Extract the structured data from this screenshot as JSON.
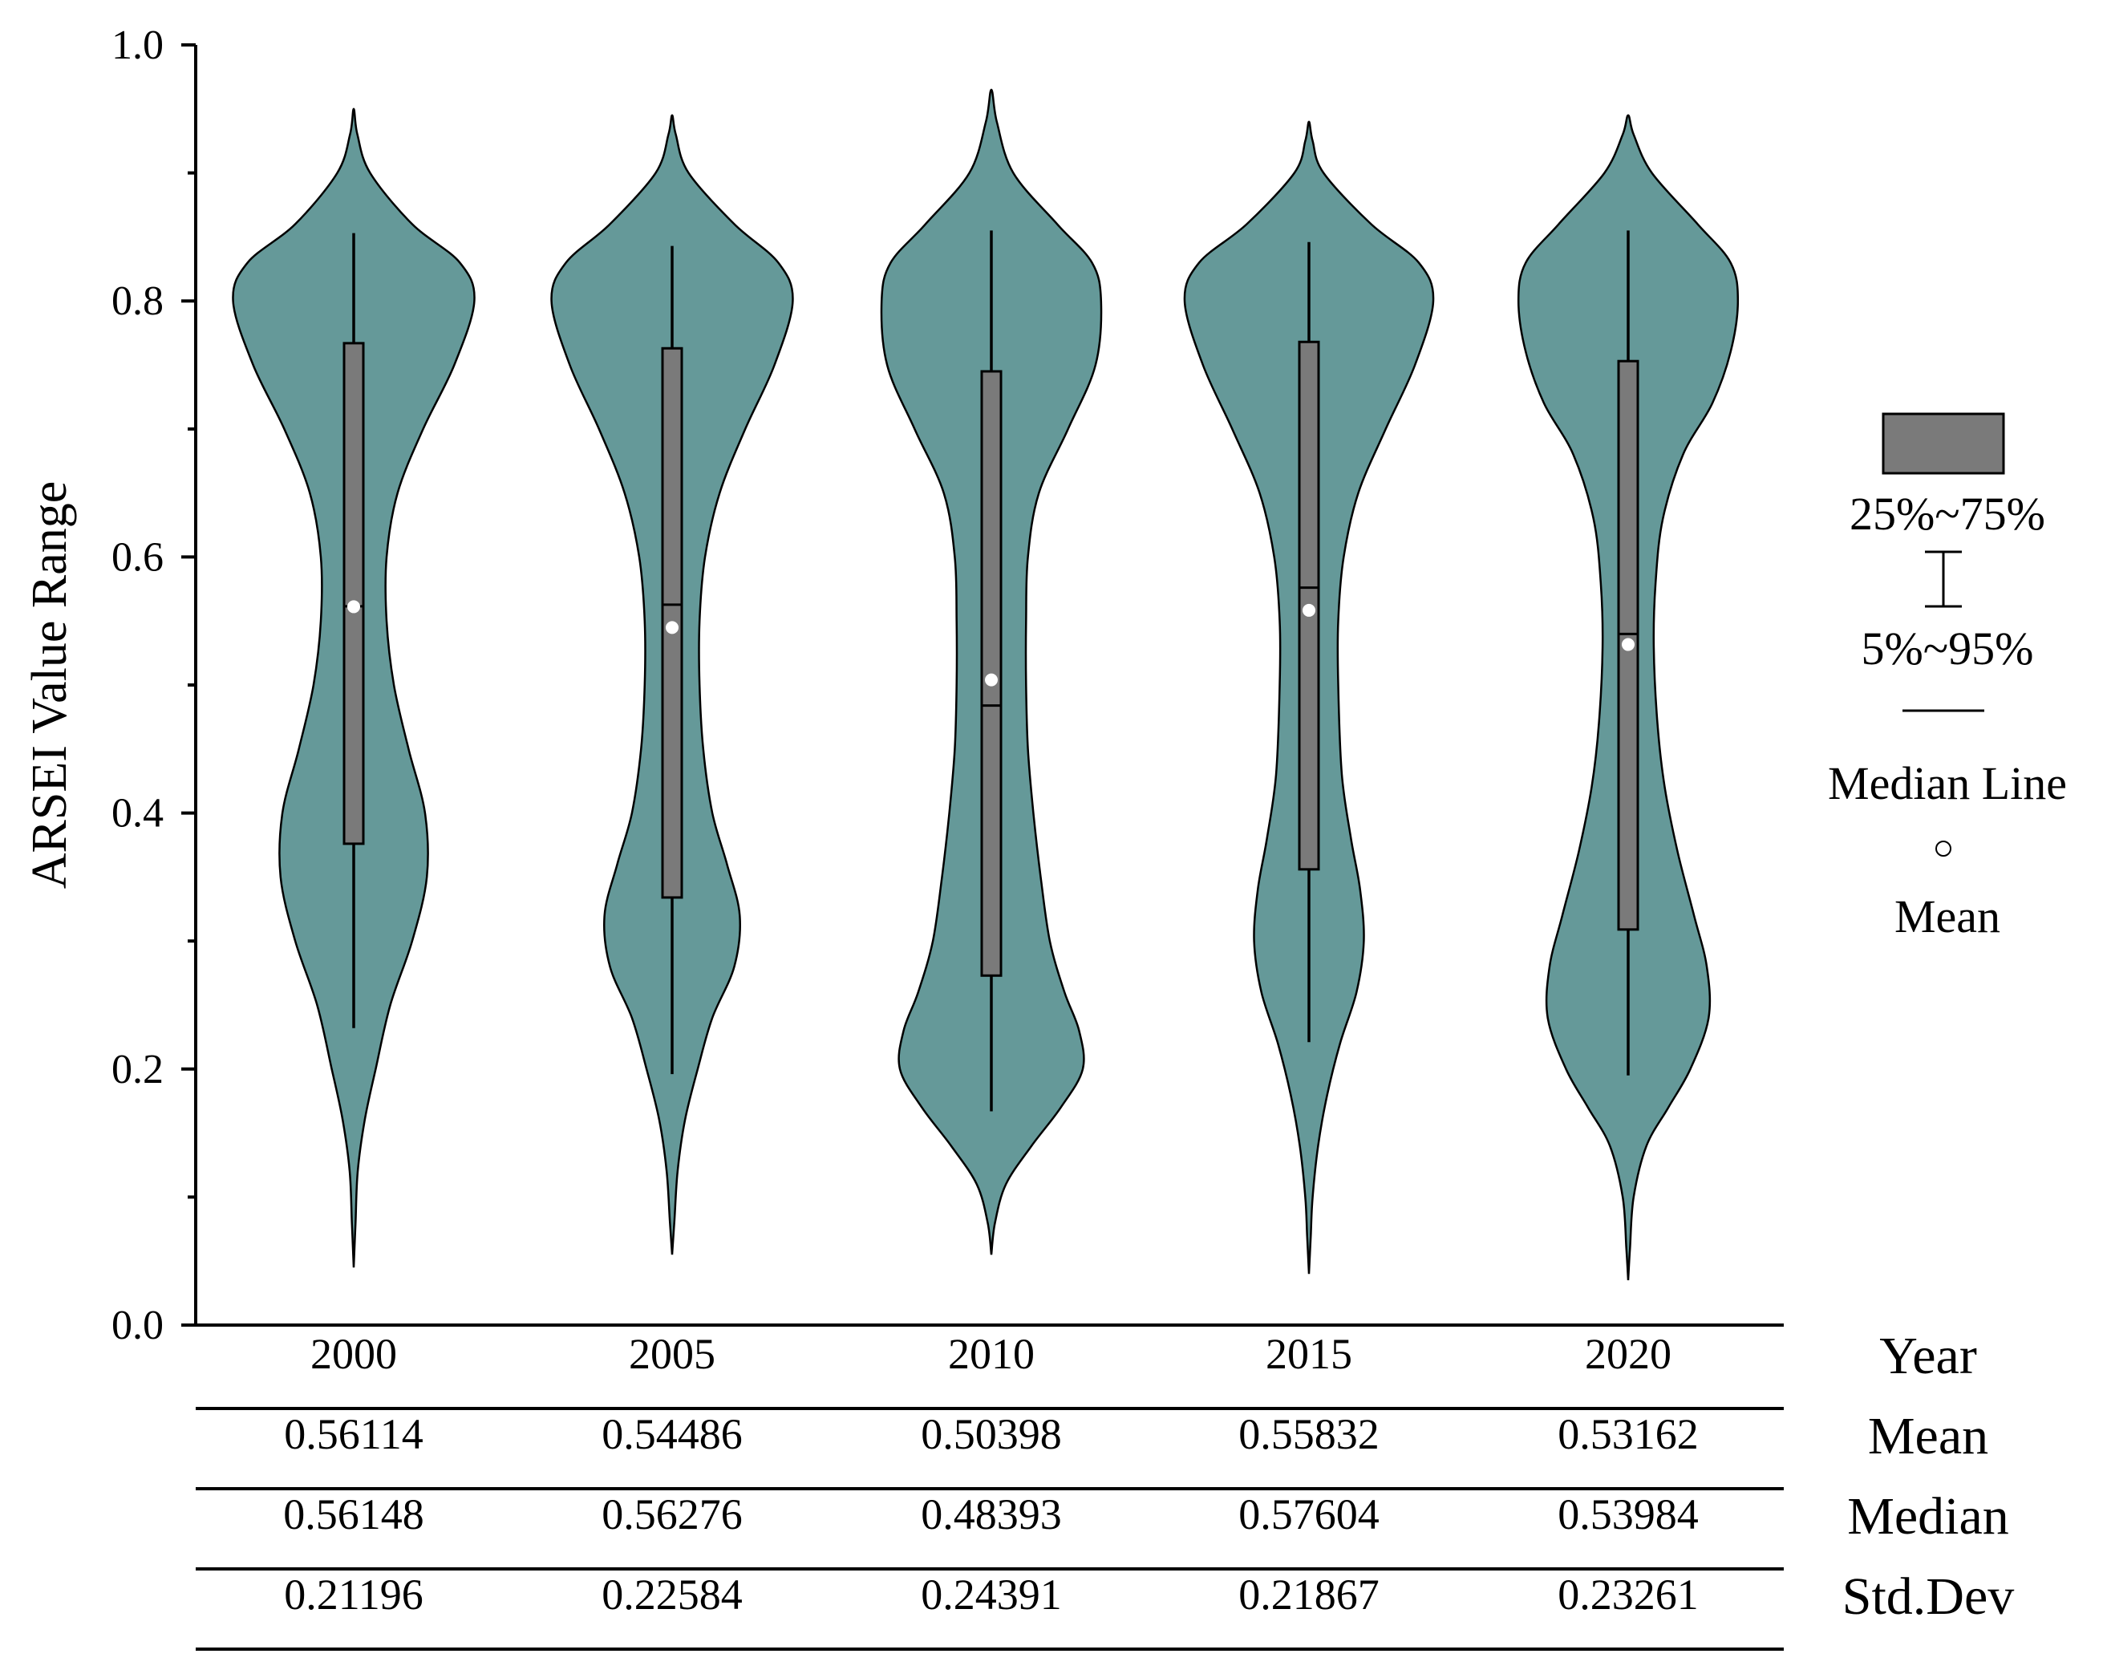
{
  "colors": {
    "violin_fill": "#659999",
    "box_fill": "#7a7a7a",
    "outline": "#000000",
    "mean_marker": "#ffffff"
  },
  "chart_data": {
    "type": "violin",
    "ylabel": "ARSEI Value Range",
    "ylim": [
      0.0,
      1.0
    ],
    "yticks": [
      "0.0",
      "0.2",
      "0.4",
      "0.6",
      "0.8",
      "1.0"
    ],
    "categories": [
      "2000",
      "2005",
      "2010",
      "2015",
      "2020"
    ],
    "series": [
      {
        "year": "2000",
        "kde_y_range": [
          0.045,
          0.95
        ],
        "q1": 0.376,
        "q3": 0.767,
        "p5": 0.232,
        "p95": 0.853,
        "median": 0.56148,
        "mean": 0.56114,
        "density": [
          [
            0.045,
            0.0
          ],
          [
            0.08,
            0.01
          ],
          [
            0.12,
            0.022
          ],
          [
            0.16,
            0.06
          ],
          [
            0.2,
            0.12
          ],
          [
            0.25,
            0.2
          ],
          [
            0.3,
            0.32
          ],
          [
            0.35,
            0.4
          ],
          [
            0.4,
            0.39
          ],
          [
            0.45,
            0.3
          ],
          [
            0.5,
            0.22
          ],
          [
            0.55,
            0.18
          ],
          [
            0.6,
            0.18
          ],
          [
            0.65,
            0.24
          ],
          [
            0.7,
            0.38
          ],
          [
            0.75,
            0.55
          ],
          [
            0.8,
            0.66
          ],
          [
            0.83,
            0.58
          ],
          [
            0.86,
            0.32
          ],
          [
            0.9,
            0.09
          ],
          [
            0.93,
            0.02
          ],
          [
            0.95,
            0.0
          ]
        ]
      },
      {
        "year": "2005",
        "kde_y_range": [
          0.055,
          0.945
        ],
        "q1": 0.334,
        "q3": 0.763,
        "p5": 0.196,
        "p95": 0.843,
        "median": 0.56276,
        "mean": 0.54486,
        "density": [
          [
            0.055,
            0.0
          ],
          [
            0.08,
            0.012
          ],
          [
            0.12,
            0.03
          ],
          [
            0.16,
            0.07
          ],
          [
            0.2,
            0.14
          ],
          [
            0.24,
            0.22
          ],
          [
            0.28,
            0.34
          ],
          [
            0.32,
            0.37
          ],
          [
            0.36,
            0.3
          ],
          [
            0.4,
            0.22
          ],
          [
            0.45,
            0.17
          ],
          [
            0.5,
            0.15
          ],
          [
            0.55,
            0.15
          ],
          [
            0.6,
            0.18
          ],
          [
            0.65,
            0.26
          ],
          [
            0.7,
            0.4
          ],
          [
            0.75,
            0.56
          ],
          [
            0.8,
            0.66
          ],
          [
            0.83,
            0.58
          ],
          [
            0.86,
            0.34
          ],
          [
            0.9,
            0.09
          ],
          [
            0.93,
            0.02
          ],
          [
            0.945,
            0.0
          ]
        ]
      },
      {
        "year": "2010",
        "kde_y_range": [
          0.055,
          0.965
        ],
        "q1": 0.273,
        "q3": 0.745,
        "p5": 0.167,
        "p95": 0.855,
        "median": 0.48393,
        "mean": 0.50398,
        "density": [
          [
            0.055,
            0.0
          ],
          [
            0.08,
            0.02
          ],
          [
            0.11,
            0.08
          ],
          [
            0.14,
            0.22
          ],
          [
            0.17,
            0.38
          ],
          [
            0.2,
            0.5
          ],
          [
            0.23,
            0.48
          ],
          [
            0.26,
            0.4
          ],
          [
            0.3,
            0.32
          ],
          [
            0.35,
            0.27
          ],
          [
            0.4,
            0.23
          ],
          [
            0.45,
            0.2
          ],
          [
            0.5,
            0.19
          ],
          [
            0.55,
            0.19
          ],
          [
            0.6,
            0.2
          ],
          [
            0.65,
            0.26
          ],
          [
            0.7,
            0.42
          ],
          [
            0.75,
            0.57
          ],
          [
            0.8,
            0.6
          ],
          [
            0.83,
            0.55
          ],
          [
            0.86,
            0.36
          ],
          [
            0.9,
            0.12
          ],
          [
            0.94,
            0.03
          ],
          [
            0.965,
            0.0
          ]
        ]
      },
      {
        "year": "2015",
        "kde_y_range": [
          0.04,
          0.94
        ],
        "q1": 0.356,
        "q3": 0.768,
        "p5": 0.221,
        "p95": 0.846,
        "median": 0.57604,
        "mean": 0.55832,
        "density": [
          [
            0.04,
            0.0
          ],
          [
            0.07,
            0.01
          ],
          [
            0.1,
            0.02
          ],
          [
            0.14,
            0.05
          ],
          [
            0.18,
            0.1
          ],
          [
            0.22,
            0.17
          ],
          [
            0.26,
            0.26
          ],
          [
            0.3,
            0.3
          ],
          [
            0.34,
            0.28
          ],
          [
            0.38,
            0.23
          ],
          [
            0.43,
            0.18
          ],
          [
            0.5,
            0.16
          ],
          [
            0.55,
            0.16
          ],
          [
            0.6,
            0.19
          ],
          [
            0.65,
            0.27
          ],
          [
            0.7,
            0.42
          ],
          [
            0.75,
            0.58
          ],
          [
            0.8,
            0.68
          ],
          [
            0.83,
            0.6
          ],
          [
            0.86,
            0.34
          ],
          [
            0.9,
            0.08
          ],
          [
            0.925,
            0.02
          ],
          [
            0.94,
            0.0
          ]
        ]
      },
      {
        "year": "2020",
        "kde_y_range": [
          0.035,
          0.945
        ],
        "q1": 0.309,
        "q3": 0.753,
        "p5": 0.195,
        "p95": 0.855,
        "median": 0.53984,
        "mean": 0.53162,
        "density": [
          [
            0.035,
            0.0
          ],
          [
            0.06,
            0.01
          ],
          [
            0.1,
            0.03
          ],
          [
            0.14,
            0.1
          ],
          [
            0.17,
            0.22
          ],
          [
            0.2,
            0.34
          ],
          [
            0.24,
            0.44
          ],
          [
            0.28,
            0.43
          ],
          [
            0.32,
            0.36
          ],
          [
            0.37,
            0.27
          ],
          [
            0.42,
            0.2
          ],
          [
            0.47,
            0.16
          ],
          [
            0.53,
            0.14
          ],
          [
            0.58,
            0.15
          ],
          [
            0.63,
            0.19
          ],
          [
            0.68,
            0.3
          ],
          [
            0.72,
            0.46
          ],
          [
            0.76,
            0.56
          ],
          [
            0.8,
            0.6
          ],
          [
            0.83,
            0.56
          ],
          [
            0.86,
            0.38
          ],
          [
            0.9,
            0.13
          ],
          [
            0.93,
            0.03
          ],
          [
            0.945,
            0.0
          ]
        ]
      }
    ],
    "legend": {
      "box_label": "25%~75%",
      "whisker_label": "5%~95%",
      "median_label": "Median Line",
      "mean_label": "Mean"
    },
    "table": {
      "row_labels": [
        "Year",
        "Mean",
        "Median",
        "Std.Dev"
      ],
      "years": [
        "2000",
        "2005",
        "2010",
        "2015",
        "2020"
      ],
      "mean": [
        "0.56114",
        "0.54486",
        "0.50398",
        "0.55832",
        "0.53162"
      ],
      "median": [
        "0.56148",
        "0.56276",
        "0.48393",
        "0.57604",
        "0.53984"
      ],
      "std": [
        "0.21196",
        "0.22584",
        "0.24391",
        "0.21867",
        "0.23261"
      ]
    }
  }
}
